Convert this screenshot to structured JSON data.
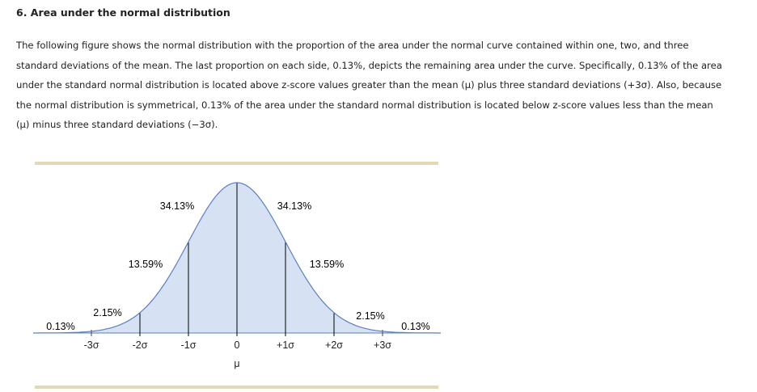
{
  "heading": "6. Area under the normal distribution",
  "paragraph_lines": [
    "The following figure shows the normal distribution with the proportion of the area under the normal curve contained within one, two, and three",
    "standard deviations of the mean. The last proportion on each side, 0.13%, depicts the remaining area under the curve. Specifically, 0.13% of the area",
    "under the standard normal distribution is located above z-score values greater than the mean (μ) plus three standard deviations (+3σ). Also, because",
    "the normal distribution is symmetrical, 0.13% of the area under the standard normal distribution is located below z-score values less than the mean",
    "(μ) minus three standard deviations (−3σ)."
  ],
  "colors": {
    "fill": "#d6e2f4",
    "curve": "#5b7fbf",
    "band": "#e3d7b4",
    "lines": "#000000"
  },
  "chart_data": {
    "type": "area",
    "x_ticks": [
      "-3σ",
      "-2σ",
      "-1σ",
      "0",
      "+1σ",
      "+2σ",
      "+3σ"
    ],
    "x_values": [
      -3,
      -2,
      -1,
      0,
      1,
      2,
      3
    ],
    "mean_label": "μ",
    "regions": [
      {
        "range": [
          -4,
          -3
        ],
        "label": "0.13%"
      },
      {
        "range": [
          -3,
          -2
        ],
        "label": "2.15%"
      },
      {
        "range": [
          -2,
          -1
        ],
        "label": "13.59%"
      },
      {
        "range": [
          -1,
          0
        ],
        "label": "34.13%"
      },
      {
        "range": [
          0,
          1
        ],
        "label": "34.13%"
      },
      {
        "range": [
          1,
          2
        ],
        "label": "13.59%"
      },
      {
        "range": [
          2,
          3
        ],
        "label": "2.15%"
      },
      {
        "range": [
          3,
          4
        ],
        "label": "0.13%"
      }
    ]
  }
}
